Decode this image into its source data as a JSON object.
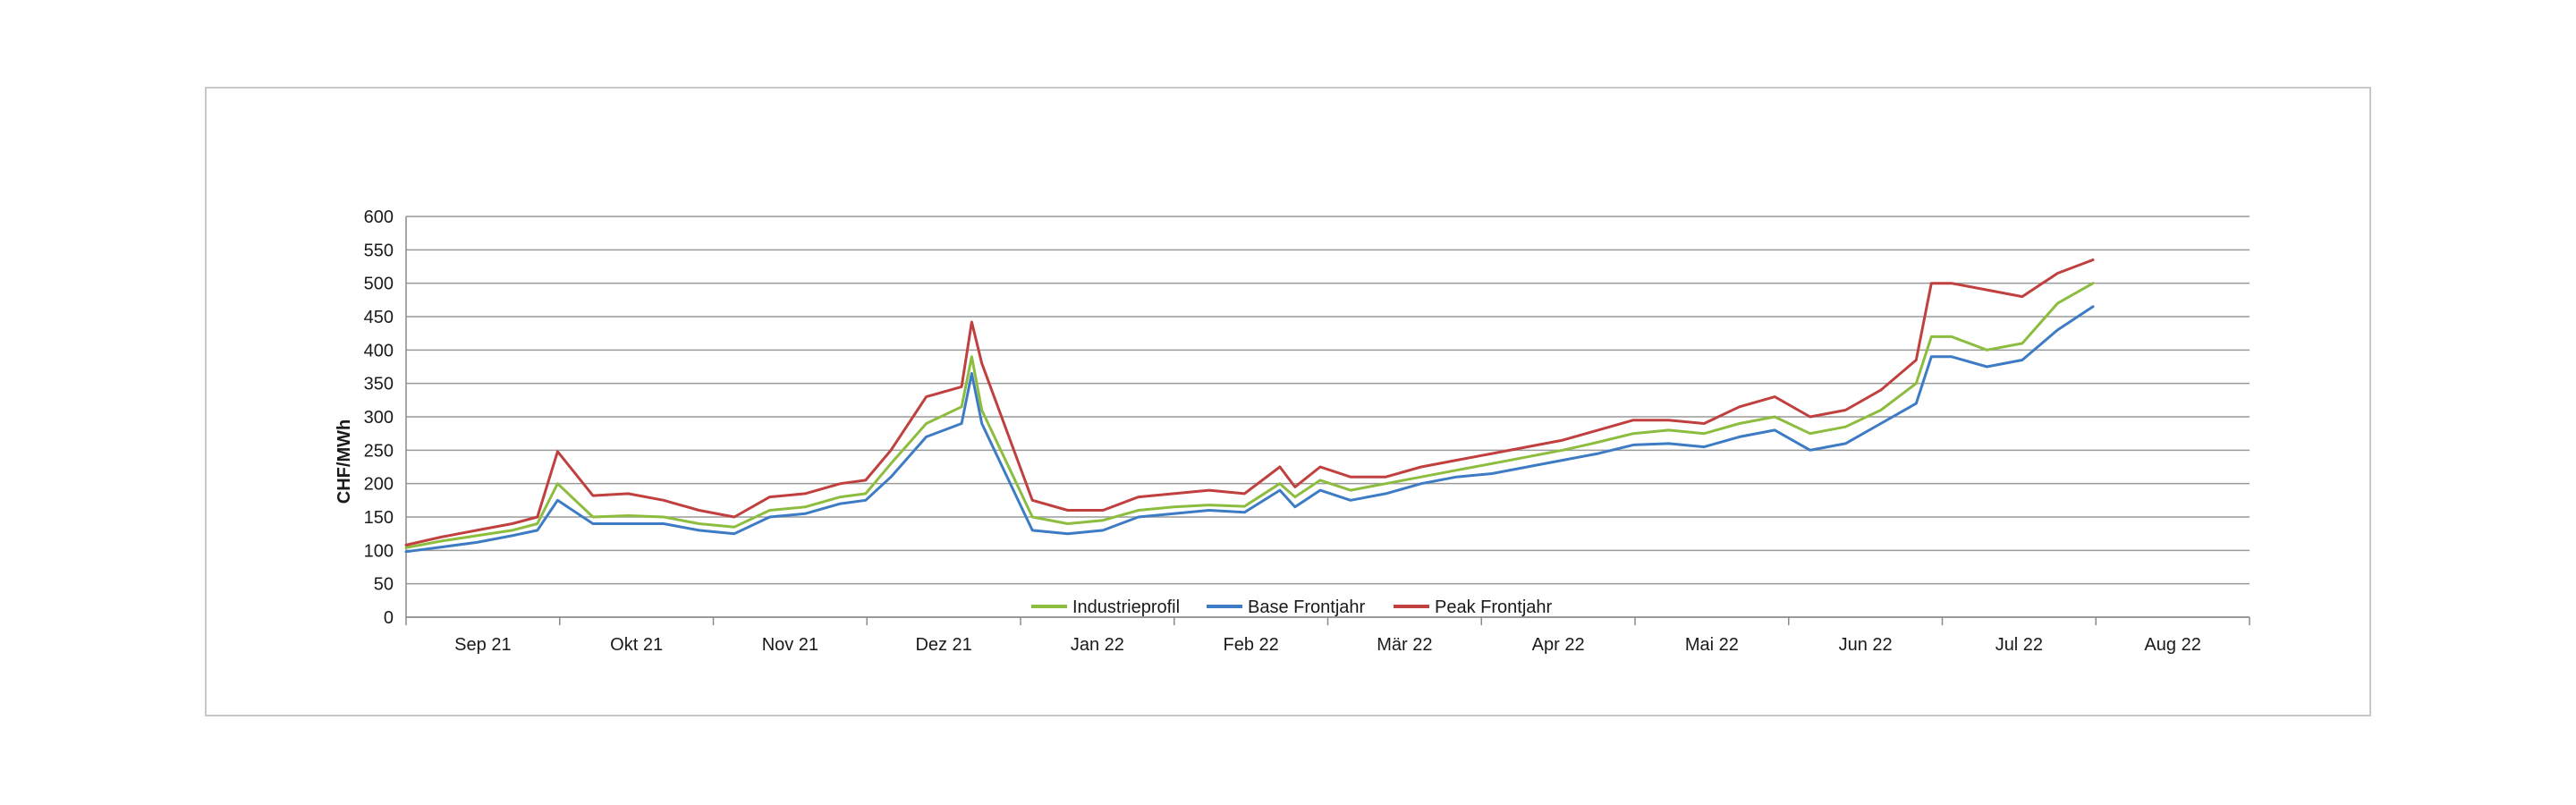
{
  "chart_data": {
    "type": "line",
    "ylabel": "CHF/MWh",
    "ylim": [
      0,
      600
    ],
    "yticks": [
      0,
      50,
      100,
      150,
      200,
      250,
      300,
      350,
      400,
      450,
      500,
      550,
      600
    ],
    "xlim": [
      "2021-09-01",
      "2022-09-01"
    ],
    "x_ticks": [
      "Sep 21",
      "Okt 21",
      "Nov 21",
      "Dez 21",
      "Jan 22",
      "Feb 22",
      "Mär 22",
      "Apr 22",
      "Mai 22",
      "Jun 22",
      "Jul 22",
      "Aug 22"
    ],
    "grid": "horizontal",
    "legend": "bottom-center",
    "x": [
      "2021-09-01",
      "2021-09-08",
      "2021-09-15",
      "2021-09-22",
      "2021-09-27",
      "2021-10-01",
      "2021-10-08",
      "2021-10-15",
      "2021-10-22",
      "2021-10-29",
      "2021-11-05",
      "2021-11-12",
      "2021-11-19",
      "2021-11-26",
      "2021-12-01",
      "2021-12-06",
      "2021-12-13",
      "2021-12-20",
      "2021-12-22",
      "2021-12-24",
      "2022-01-03",
      "2022-01-10",
      "2022-01-17",
      "2022-01-24",
      "2022-01-31",
      "2022-02-07",
      "2022-02-14",
      "2022-02-21",
      "2022-02-24",
      "2022-03-01",
      "2022-03-07",
      "2022-03-14",
      "2022-03-21",
      "2022-03-28",
      "2022-04-04",
      "2022-04-11",
      "2022-04-18",
      "2022-04-25",
      "2022-05-02",
      "2022-05-09",
      "2022-05-16",
      "2022-05-23",
      "2022-05-30",
      "2022-06-06",
      "2022-06-13",
      "2022-06-20",
      "2022-06-27",
      "2022-06-30",
      "2022-07-04",
      "2022-07-11",
      "2022-07-18",
      "2022-07-25",
      "2022-08-01"
    ],
    "series": [
      {
        "name": "Industrieprofil",
        "color": "#8cbd3f",
        "values": [
          104,
          114,
          122,
          130,
          140,
          200,
          150,
          152,
          150,
          140,
          135,
          160,
          165,
          180,
          185,
          230,
          290,
          315,
          390,
          310,
          150,
          140,
          145,
          160,
          165,
          168,
          166,
          200,
          180,
          205,
          190,
          200,
          210,
          220,
          230,
          240,
          250,
          262,
          275,
          280,
          275,
          290,
          300,
          275,
          285,
          310,
          350,
          420,
          420,
          400,
          410,
          470,
          500
        ]
      },
      {
        "name": "Base Frontjahr",
        "color": "#3d7cc4",
        "values": [
          98,
          105,
          112,
          122,
          130,
          175,
          140,
          140,
          140,
          130,
          125,
          150,
          155,
          170,
          175,
          210,
          270,
          290,
          365,
          290,
          130,
          125,
          130,
          150,
          155,
          160,
          157,
          190,
          165,
          190,
          175,
          185,
          200,
          210,
          215,
          225,
          235,
          245,
          258,
          260,
          255,
          270,
          280,
          250,
          260,
          290,
          320,
          390,
          390,
          375,
          385,
          430,
          465
        ]
      },
      {
        "name": "Peak Frontjahr",
        "color": "#c0403f",
        "values": [
          108,
          120,
          130,
          140,
          150,
          248,
          182,
          185,
          175,
          160,
          150,
          180,
          185,
          200,
          205,
          250,
          330,
          345,
          442,
          380,
          175,
          160,
          160,
          180,
          185,
          190,
          185,
          225,
          195,
          225,
          210,
          210,
          225,
          235,
          245,
          255,
          265,
          280,
          295,
          295,
          290,
          315,
          330,
          300,
          310,
          340,
          385,
          500,
          500,
          490,
          480,
          515,
          535
        ]
      }
    ]
  }
}
